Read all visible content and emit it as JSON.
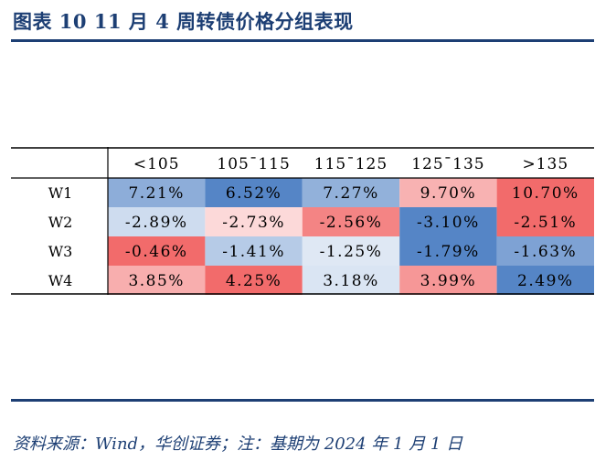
{
  "title": "图表 10   11 月 4 周转债价格分组表现",
  "source": "资料来源：Wind，华创证券；注：基期为 2024 年 1 月 1 日",
  "colors": {
    "title": "#1d3f74",
    "positive": "#f26b6b",
    "negative": "#5585c6",
    "neutral": "#ffffff"
  },
  "chart_data": {
    "type": "heatmap",
    "title": "11 月 4 周转债价格分组表现",
    "columns": [
      "<105",
      "105¯115",
      "115¯125",
      "125¯135",
      ">135"
    ],
    "rows": [
      "W1",
      "W2",
      "W3",
      "W4"
    ],
    "value_labels": [
      [
        "7.21%",
        "6.52%",
        "7.27%",
        "9.70%",
        "10.70%"
      ],
      [
        "-2.89%",
        "-2.73%",
        "-2.56%",
        "-3.10%",
        "-2.51%"
      ],
      [
        "-0.46%",
        "-1.41%",
        "-1.25%",
        "-1.79%",
        "-1.63%"
      ],
      [
        "3.85%",
        "4.25%",
        "3.18%",
        "3.99%",
        "2.49%"
      ]
    ],
    "values": [
      [
        7.21,
        6.52,
        7.27,
        9.7,
        10.7
      ],
      [
        -2.89,
        -2.73,
        -2.56,
        -3.1,
        -2.51
      ],
      [
        -0.46,
        -1.41,
        -1.25,
        -1.79,
        -1.63
      ],
      [
        3.85,
        4.25,
        3.18,
        3.99,
        2.49
      ]
    ],
    "color_scale": "per-row: max = red, mid = white, min = blue"
  }
}
